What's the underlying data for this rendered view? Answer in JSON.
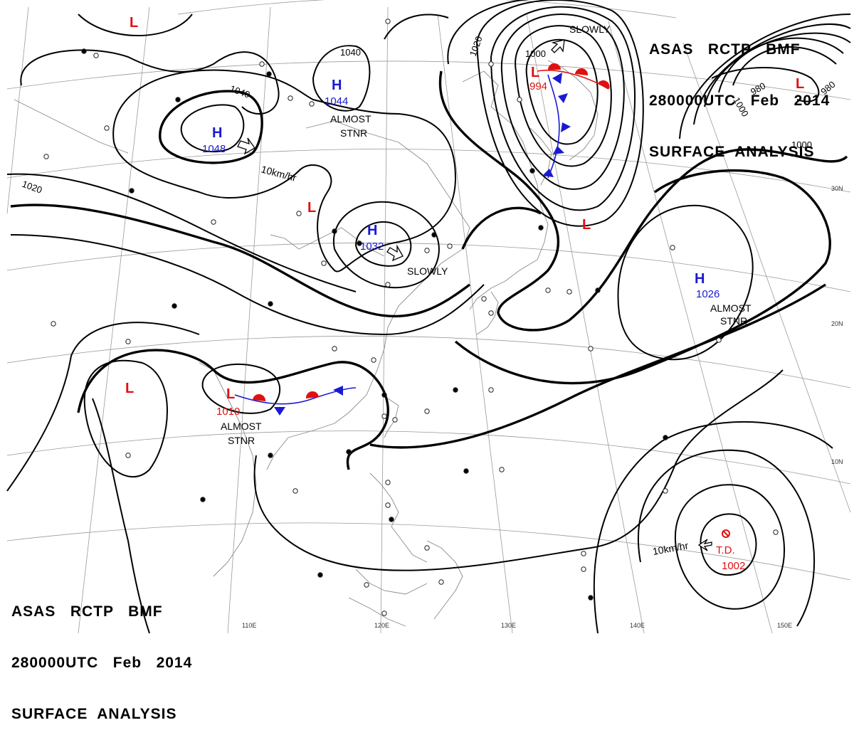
{
  "title": {
    "line1": "ASAS   RCTP   BMF",
    "line2": "280000UTC   Feb   2014",
    "line3": "SURFACE  ANALYSIS"
  },
  "longitude_labels": [
    "110E",
    "120E",
    "130E",
    "140E",
    "150E"
  ],
  "latitude_labels": [
    "30N",
    "20N",
    "10N"
  ],
  "isobar_labels": [
    "1040",
    "1040",
    "1020",
    "1020",
    "1000",
    "1000",
    "1000",
    "980",
    "980"
  ],
  "pressure_centers": [
    {
      "type": "H",
      "value": "1048",
      "color": "#1a1ad0"
    },
    {
      "type": "H",
      "value": "1044",
      "color": "#1a1ad0"
    },
    {
      "type": "H",
      "value": "1032",
      "color": "#1a1ad0"
    },
    {
      "type": "H",
      "value": "1026",
      "color": "#1a1ad0"
    },
    {
      "type": "L",
      "value": "",
      "color": "#e01010"
    },
    {
      "type": "L",
      "value": "",
      "color": "#e01010"
    },
    {
      "type": "L",
      "value": "994",
      "color": "#e01010"
    },
    {
      "type": "L",
      "value": "",
      "color": "#e01010"
    },
    {
      "type": "L",
      "value": "",
      "color": "#e01010"
    },
    {
      "type": "L",
      "value": "",
      "color": "#e01010"
    },
    {
      "type": "L",
      "value": "1010",
      "color": "#e01010"
    }
  ],
  "tropical_depression": {
    "label": "T.D.",
    "value": "1002",
    "color": "#e01010"
  },
  "movement_labels": {
    "h1048": "10km/hr",
    "h1044_a": "ALMOST",
    "h1044_b": "STNR",
    "h1032": "SLOWLY",
    "l994": "SLOWLY",
    "h1026_a": "ALMOST",
    "h1026_b": "STNR",
    "l1010_a": "ALMOST",
    "l1010_b": "STNR",
    "td": "10km/hr"
  },
  "colors": {
    "high": "#1a1ad0",
    "low": "#e01010",
    "cold_front": "#1a1ad0",
    "warm_front": "#e01010"
  }
}
